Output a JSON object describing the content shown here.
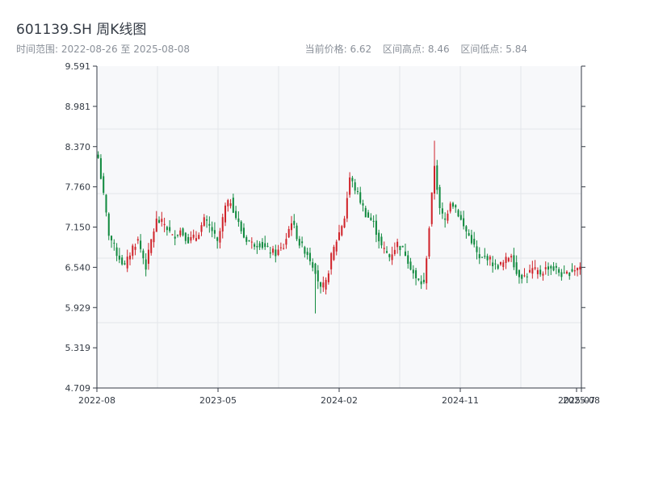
{
  "header": {
    "title": "601139.SH 周K线图",
    "date_range": "时间范围: 2022-08-26 至 2025-08-08",
    "current_price": "当前价格: 6.62",
    "range_high": "区间高点: 8.46",
    "range_low": "区间低点: 5.84"
  },
  "chart_data": {
    "type": "candlestick",
    "title": "601139.SH 周K线图",
    "frequency": "weekly",
    "start_date": "2022-08-26",
    "end_date": "2025-08-08",
    "ylim": [
      4.709,
      9.591
    ],
    "y_ticks": [
      "9.591",
      "8.981",
      "8.370",
      "7.760",
      "7.150",
      "6.540",
      "5.929",
      "5.319",
      "4.709"
    ],
    "x_ticks": [
      {
        "label": "2022-08",
        "pos": 0.0
      },
      {
        "label": "2023-05",
        "pos": 0.25
      },
      {
        "label": "2024-02",
        "pos": 0.5
      },
      {
        "label": "2024-11",
        "pos": 0.75
      },
      {
        "label": "2025-07",
        "pos": 0.99
      },
      {
        "label": "2025-08",
        "pos": 1.0
      }
    ],
    "up_color": "#d0232a",
    "down_color": "#118a3f",
    "anchors_close": [
      [
        0,
        8.2
      ],
      [
        4,
        7.05
      ],
      [
        7,
        6.75
      ],
      [
        10,
        6.55
      ],
      [
        13,
        6.85
      ],
      [
        15,
        6.95
      ],
      [
        18,
        6.55
      ],
      [
        20,
        6.95
      ],
      [
        22,
        7.25
      ],
      [
        25,
        7.2
      ],
      [
        28,
        7.0
      ],
      [
        31,
        7.1
      ],
      [
        34,
        6.95
      ],
      [
        37,
        7.0
      ],
      [
        40,
        7.25
      ],
      [
        43,
        7.1
      ],
      [
        45,
        6.9
      ],
      [
        48,
        7.45
      ],
      [
        50,
        7.55
      ],
      [
        52,
        7.3
      ],
      [
        55,
        7.0
      ],
      [
        58,
        6.9
      ],
      [
        61,
        6.9
      ],
      [
        64,
        6.8
      ],
      [
        67,
        6.75
      ],
      [
        70,
        6.85
      ],
      [
        73,
        7.25
      ],
      [
        76,
        6.9
      ],
      [
        79,
        6.75
      ],
      [
        82,
        6.5
      ],
      [
        84,
        6.2
      ],
      [
        86,
        6.3
      ],
      [
        88,
        6.7
      ],
      [
        90,
        6.95
      ],
      [
        93,
        7.3
      ],
      [
        95,
        7.9
      ],
      [
        98,
        7.65
      ],
      [
        101,
        7.35
      ],
      [
        104,
        7.2
      ],
      [
        107,
        6.85
      ],
      [
        110,
        6.7
      ],
      [
        113,
        6.9
      ],
      [
        116,
        6.75
      ],
      [
        118,
        6.55
      ],
      [
        120,
        6.35
      ],
      [
        123,
        6.28
      ],
      [
        125,
        7.15
      ],
      [
        127,
        8.1
      ],
      [
        129,
        7.4
      ],
      [
        131,
        7.25
      ],
      [
        133,
        7.55
      ],
      [
        135,
        7.45
      ],
      [
        138,
        7.15
      ],
      [
        141,
        6.95
      ],
      [
        144,
        6.65
      ],
      [
        147,
        6.7
      ],
      [
        150,
        6.55
      ],
      [
        153,
        6.6
      ],
      [
        156,
        6.75
      ],
      [
        158,
        6.45
      ],
      [
        161,
        6.4
      ],
      [
        164,
        6.5
      ],
      [
        167,
        6.45
      ],
      [
        170,
        6.55
      ],
      [
        173,
        6.5
      ],
      [
        176,
        6.4
      ],
      [
        179,
        6.5
      ],
      [
        182,
        6.55
      ]
    ],
    "highlights": [
      {
        "index": 0,
        "high": 8.3
      },
      {
        "index": 82,
        "low": 5.84
      },
      {
        "index": 127,
        "high": 8.46
      }
    ]
  }
}
